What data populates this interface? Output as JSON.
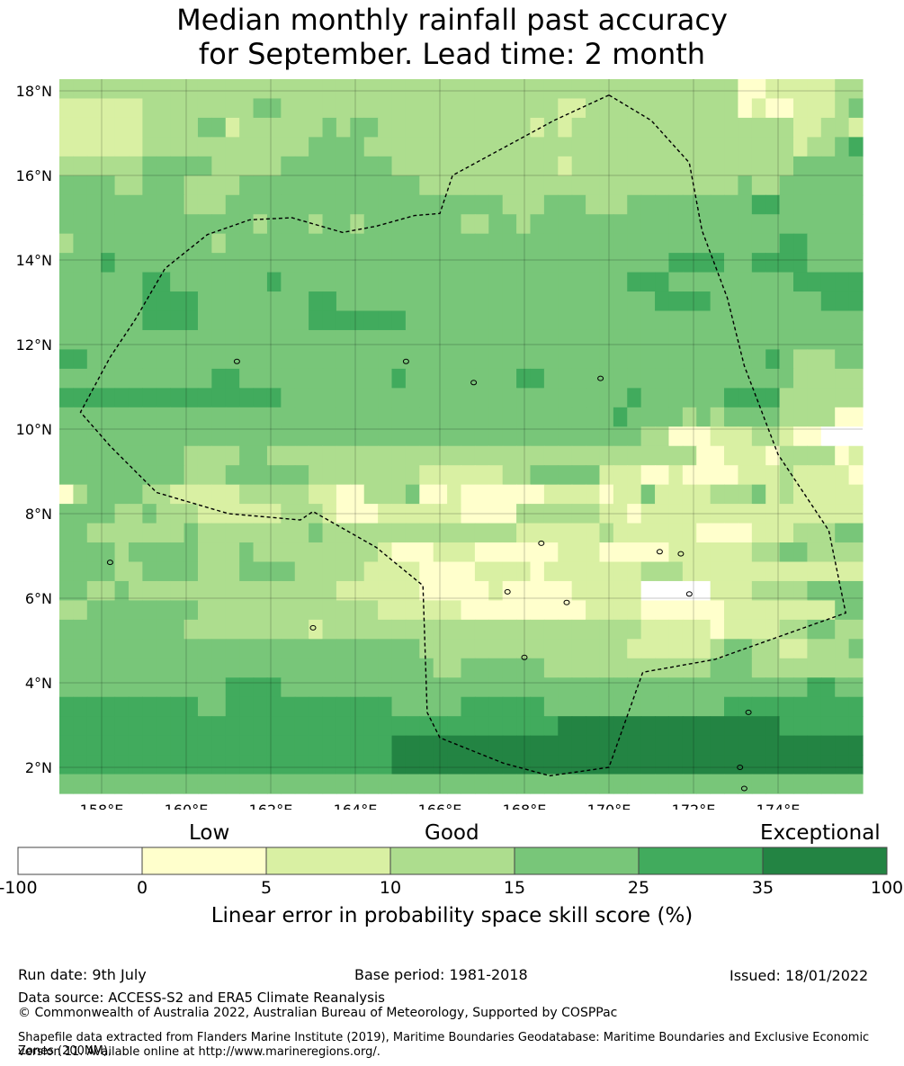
{
  "title": {
    "line1": "Median monthly rainfall past accuracy",
    "line2": "for September. Lead time: 2 month"
  },
  "map": {
    "lat_labels": [
      "18°N",
      "16°N",
      "14°N",
      "12°N",
      "10°N",
      "8°N",
      "6°N",
      "4°N",
      "2°N"
    ],
    "lon_labels": [
      "158°E",
      "160°E",
      "162°E",
      "164°E",
      "166°E",
      "168°E",
      "170°E",
      "172°E",
      "174°E"
    ],
    "lon_extent": [
      157.0,
      176.0
    ],
    "lat_extent": [
      1.4,
      18.3
    ],
    "grid": true,
    "eez_boundary": "dashed",
    "skill_grid": {
      "note_legend": "0=below 0, 1=0-5, 2=5-10, 3=10-15, 4=15-25, 5=25-35, 6=35-100",
      "rows": [
        "3333333333333333333333333333333333333333333333333112222233",
        "2222223333333344333333333333333333332233333333333121122234",
        "2222223333442333333434433333333333232333333333333333322332",
        "2222223333333333334444333333333333333333333333333333323345",
        "3333334444433333444444443333333333332333333333333333344444",
        "4444334443333444444444444433333333333333333333333433444444",
        "4444444443334444444444444444444433344433344444444455444444",
        "4444444444444434443443444444433443444444444444444444444444",
        "3444444444434444444444444444444444444444444444444444554444",
        "4445444444444444444444444444444444444444444455554455554444",
        "4444445544444445444444444444444444444444455544444444455555",
        "4444445555444444445544444444444444444444444555544444444555",
        "4444445555444444445555555444444444444444444444444444444444",
        "4444444444444444444444444444444444444444444444444444444444",
        "5544444444444444444444444444444444444444444444444445433344",
        "4444444444455444444444445444444445544444444444444444433333",
        "5555555555555555444444444444444444444444454444445555333333",
        "4444444444444444444444444444444444444444544443434444333311",
        "4444444444444444444444444444444444444444443311122233211000",
        "4444444443333443333333333333333333333333333333112221333312",
        "4444444443334444443333333322222233444442221121111222322221",
        "1344443322222333332211333411211111122221224222233342322222",
        "4444334333222222333211122222211113333332212222222222222222",
        "4433333334333333334333333333333332222223222222111122233344",
        "4444344444333433333333321112221111112221111122222233443333",
        "4444334444333444433333222211112222122222223332222222222222",
        "4433433333333333333322222211111211111222220000022233334444",
        "3344444444333333333333322222211111111122221111112222222244",
        "4444444443333333332333333333333333333333332222212222334433",
        "4444444444444444444444444433333333333333322222234433223334",
        "4444444444444444444444444443344444433333333333344433333333",
        "4444444444445555444444444444444444444444444444444444445544",
        "5555555555445555555555554444455555544444444444445555555555",
        "5555555555555555555555555555555555556666666666666666555555",
        "5555555555555555555555556666666666666666666666666666666666",
        "5555555555555555555555556666666666666666666666666666666666",
        "4444444444444444444444444444444444444444444444444444444444"
      ]
    }
  },
  "colorbar": {
    "category_labels": [
      "Low",
      "Good",
      "Exceptional"
    ],
    "ticks": [
      "-100",
      "0",
      "5",
      "10",
      "15",
      "25",
      "35",
      "100"
    ],
    "colors": [
      "#ffffff",
      "#ffffcc",
      "#d9f0a3",
      "#addd8e",
      "#78c679",
      "#41ab5d",
      "#238443"
    ],
    "label": "Linear error in probability space skill score (%)"
  },
  "footer": {
    "run_date": "Run date: 9th July",
    "base_period": "Base period: 1981-2018",
    "issued": "Issued: 18/01/2022",
    "data_source": "Data source: ACCESS-S2 and ERA5 Climate Reanalysis",
    "copyright": "© Commonwealth of Australia 2022, Australian Bureau of Meteorology, Supported by COSPPac",
    "shapefile_line1": "Shapefile data extracted from Flanders Marine Institute (2019), Maritime Boundaries Geodatabase: Maritime Boundaries and Exclusive Economic Zones (200NM),",
    "shapefile_line2": "version 11. Available online at http://www.marineregions.org/."
  }
}
